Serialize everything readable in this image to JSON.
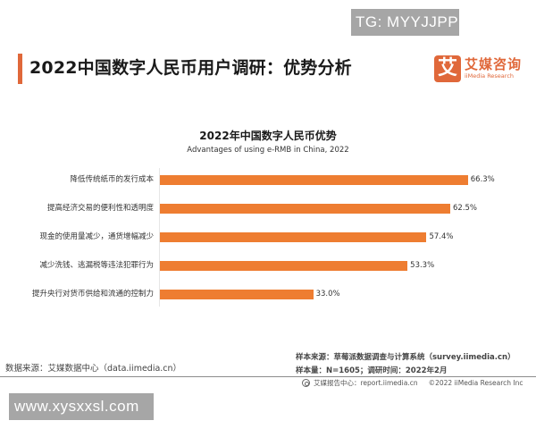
{
  "watermarks": {
    "top": "TG: MYYJJPP",
    "bottom": "www.xysxxsl.com"
  },
  "header": {
    "title": "2022中国数字人民币用户调研：优势分析",
    "accent_color": "#e0683a",
    "logo": {
      "mark": "艾",
      "name_cn": "艾媒咨询",
      "name_en": "iiMedia Research"
    }
  },
  "chart_data": {
    "type": "bar",
    "orientation": "horizontal",
    "title": "2022年中国数字人民币优势",
    "subtitle": "Advantages of using e-RMB in China, 2022",
    "categories": [
      "降低传统纸币的发行成本",
      "提高经济交易的便利性和透明度",
      "现金的使用量减少，通货增幅减少",
      "减少洗钱、逃漏税等违法犯罪行为",
      "提升央行对货币供给和流通的控制力"
    ],
    "values": [
      66.3,
      62.5,
      57.4,
      53.3,
      33.0
    ],
    "value_labels": [
      "66.3%",
      "62.5%",
      "57.4%",
      "53.3%",
      "33.0%"
    ],
    "unit": "%",
    "bar_color": "#ee7d31",
    "xlabel": "",
    "ylabel": "",
    "grid": false,
    "legend": null
  },
  "footer": {
    "data_source": "数据来源：艾媒数据中心（data.iimedia.cn）",
    "sample_source": "样本来源：草莓派数据调查与计算系统（survey.iimedia.cn）",
    "sample_size": "样本量：N=1605；调研时间：2022年2月",
    "report_center": "艾媒报告中心：report.iimedia.cn",
    "copyright": "©2022 iiMedia Research Inc"
  }
}
